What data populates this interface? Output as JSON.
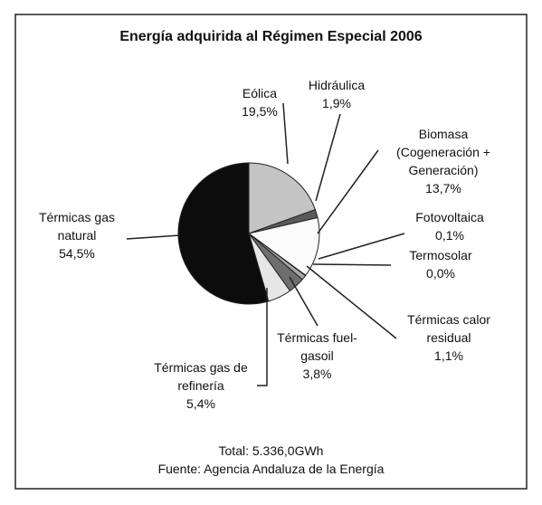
{
  "chart_data": {
    "type": "pie",
    "title": "Energía adquirida al Régimen Especial 2006",
    "categories": [
      "Eólica",
      "Hidráulica",
      "Biomasa (Cogeneración + Generación)",
      "Fotovoltaica",
      "Termosolar",
      "Térmicas calor residual",
      "Térmicas fuel-gasoil",
      "Térmicas gas de refinería",
      "Térmicas gas natural"
    ],
    "values": [
      19.5,
      1.9,
      13.7,
      0.1,
      0.0,
      1.1,
      3.8,
      5.4,
      54.5
    ],
    "value_labels": [
      "19,5%",
      "1,9%",
      "13,7%",
      "0,1%",
      "0,0%",
      "1,1%",
      "3,8%",
      "5,4%",
      "54,5%"
    ],
    "colors": [
      "#c4c4c4",
      "#5a5a5a",
      "#fbfbfb",
      "#ffffff",
      "#ffffff",
      "#a8a8a8",
      "#6e6e6e",
      "#e6e6e6",
      "#0c0c0c"
    ],
    "notes": [
      "Total: 5.336,0GWh",
      "Fuente: Agencia Andaluza de la Energía"
    ]
  }
}
